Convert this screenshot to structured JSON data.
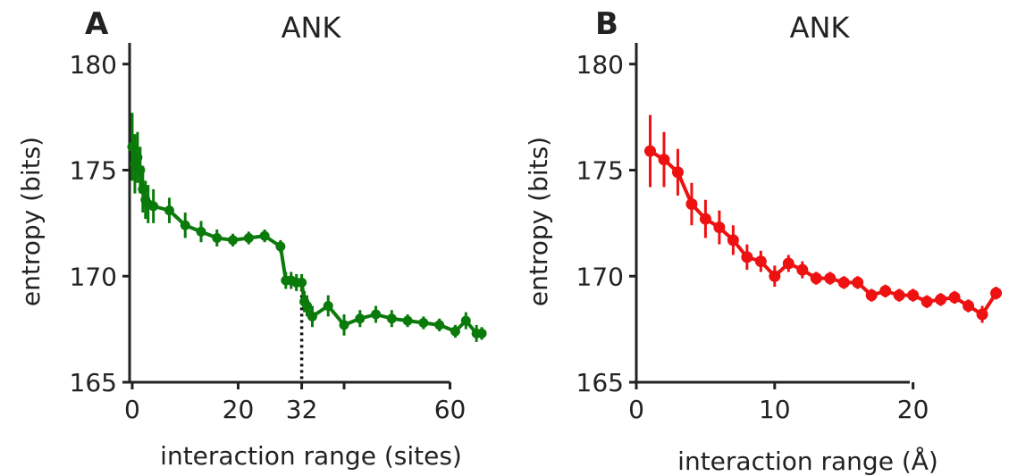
{
  "chart_data": [
    {
      "type": "line",
      "panel_letter": "A",
      "title": "ANK",
      "xlabel": "interaction range (sites)",
      "ylabel": "entropy (bits)",
      "xlim": [
        -0.5,
        67
      ],
      "ylim": [
        165,
        181
      ],
      "xticks": [
        0,
        20,
        32,
        40,
        60
      ],
      "xtick_labels": [
        "0",
        "20",
        "32",
        "",
        "60"
      ],
      "yticks": [
        165,
        170,
        175,
        180
      ],
      "ytick_labels": [
        "165",
        "170",
        "175",
        "180"
      ],
      "color": "#0a7a0a",
      "marker_note": "dotted vertical line at x = 32",
      "vline_x": 32,
      "series": [
        {
          "x": [
            0,
            0.5,
            1,
            1.5,
            2,
            2.5,
            3,
            4,
            7,
            10,
            13,
            16,
            19,
            22,
            25,
            28,
            29,
            30,
            31,
            32,
            32.5,
            33,
            34,
            37,
            40,
            43,
            46,
            49,
            52,
            55,
            58,
            61,
            63,
            65,
            66
          ],
          "y": [
            176.1,
            175.3,
            175.6,
            175.0,
            174.1,
            173.6,
            173.4,
            173.3,
            173.1,
            172.4,
            172.1,
            171.8,
            171.7,
            171.8,
            171.9,
            171.4,
            169.8,
            169.8,
            169.7,
            169.7,
            168.8,
            168.6,
            168.1,
            168.6,
            167.7,
            168.0,
            168.2,
            168.0,
            167.9,
            167.8,
            167.7,
            167.4,
            167.9,
            167.3,
            167.3
          ],
          "err": [
            1.6,
            1.4,
            1.2,
            1.1,
            1.1,
            0.9,
            0.9,
            0.8,
            0.6,
            0.6,
            0.5,
            0.4,
            0.3,
            0.3,
            0.3,
            0.3,
            0.4,
            0.4,
            0.4,
            0.4,
            0.5,
            0.5,
            0.5,
            0.5,
            0.5,
            0.4,
            0.4,
            0.4,
            0.3,
            0.3,
            0.3,
            0.3,
            0.4,
            0.4,
            0.3
          ]
        }
      ]
    },
    {
      "type": "line",
      "panel_letter": "B",
      "title": "ANK",
      "xlabel": "interaction range (Å)",
      "ylabel": "entropy (bits)",
      "xlim": [
        0,
        27
      ],
      "ylim": [
        165,
        181
      ],
      "xticks": [
        0,
        10,
        20
      ],
      "xtick_labels": [
        "0",
        "10",
        "20"
      ],
      "yticks": [
        165,
        170,
        175,
        180
      ],
      "ytick_labels": [
        "165",
        "170",
        "175",
        "180"
      ],
      "color": "#ee1111",
      "series": [
        {
          "x": [
            1,
            2,
            3,
            4,
            5,
            6,
            7,
            8,
            9,
            10,
            11,
            12,
            13,
            14,
            15,
            16,
            17,
            18,
            19,
            20,
            21,
            22,
            23,
            24,
            25,
            26
          ],
          "y": [
            175.9,
            175.5,
            174.9,
            173.4,
            172.7,
            172.3,
            171.7,
            170.9,
            170.7,
            170.0,
            170.6,
            170.3,
            169.9,
            169.9,
            169.7,
            169.7,
            169.1,
            169.3,
            169.1,
            169.1,
            168.8,
            168.9,
            169.0,
            168.6,
            168.2,
            169.2
          ],
          "err": [
            1.7,
            1.3,
            1.1,
            1.0,
            0.9,
            0.8,
            0.7,
            0.6,
            0.5,
            0.5,
            0.4,
            0.4,
            0.3,
            0.3,
            0.3,
            0.3,
            0.3,
            0.3,
            0.3,
            0.3,
            0.3,
            0.3,
            0.3,
            0.3,
            0.4,
            0.3
          ]
        }
      ]
    }
  ]
}
